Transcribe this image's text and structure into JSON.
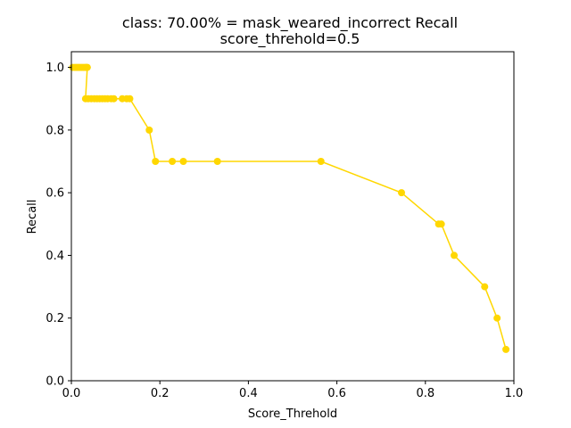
{
  "chart_data": {
    "type": "line",
    "title": "class: 70.00% = mask_weared_incorrect Recall",
    "subtitle": "score_threhold=0.5",
    "xlabel": "Score_Threhold",
    "ylabel": "Recall",
    "xlim": [
      0.0,
      1.0
    ],
    "ylim": [
      0.0,
      1.05
    ],
    "xticks": [
      "0.0",
      "0.2",
      "0.4",
      "0.6",
      "0.8",
      "1.0"
    ],
    "yticks": [
      "0.0",
      "0.2",
      "0.4",
      "0.6",
      "0.8",
      "1.0"
    ],
    "grid": false,
    "legend": "none",
    "series": [
      {
        "color": "#ffd700",
        "x": [
          0.003,
          0.008,
          0.012,
          0.016,
          0.02,
          0.024,
          0.028,
          0.032,
          0.034,
          0.036,
          0.032,
          0.038,
          0.045,
          0.052,
          0.058,
          0.064,
          0.07,
          0.076,
          0.082,
          0.09,
          0.096,
          0.115,
          0.125,
          0.132,
          0.176,
          0.19,
          0.228,
          0.253,
          0.33,
          0.564,
          0.746,
          0.83,
          0.836,
          0.865,
          0.934,
          0.962,
          0.982
        ],
        "y": [
          1.0,
          1.0,
          1.0,
          1.0,
          1.0,
          1.0,
          1.0,
          1.0,
          1.0,
          1.0,
          0.9,
          0.9,
          0.9,
          0.9,
          0.9,
          0.9,
          0.9,
          0.9,
          0.9,
          0.9,
          0.9,
          0.9,
          0.9,
          0.9,
          0.8,
          0.7,
          0.7,
          0.7,
          0.7,
          0.7,
          0.6,
          0.5,
          0.5,
          0.4,
          0.3,
          0.2,
          0.1
        ]
      }
    ]
  }
}
